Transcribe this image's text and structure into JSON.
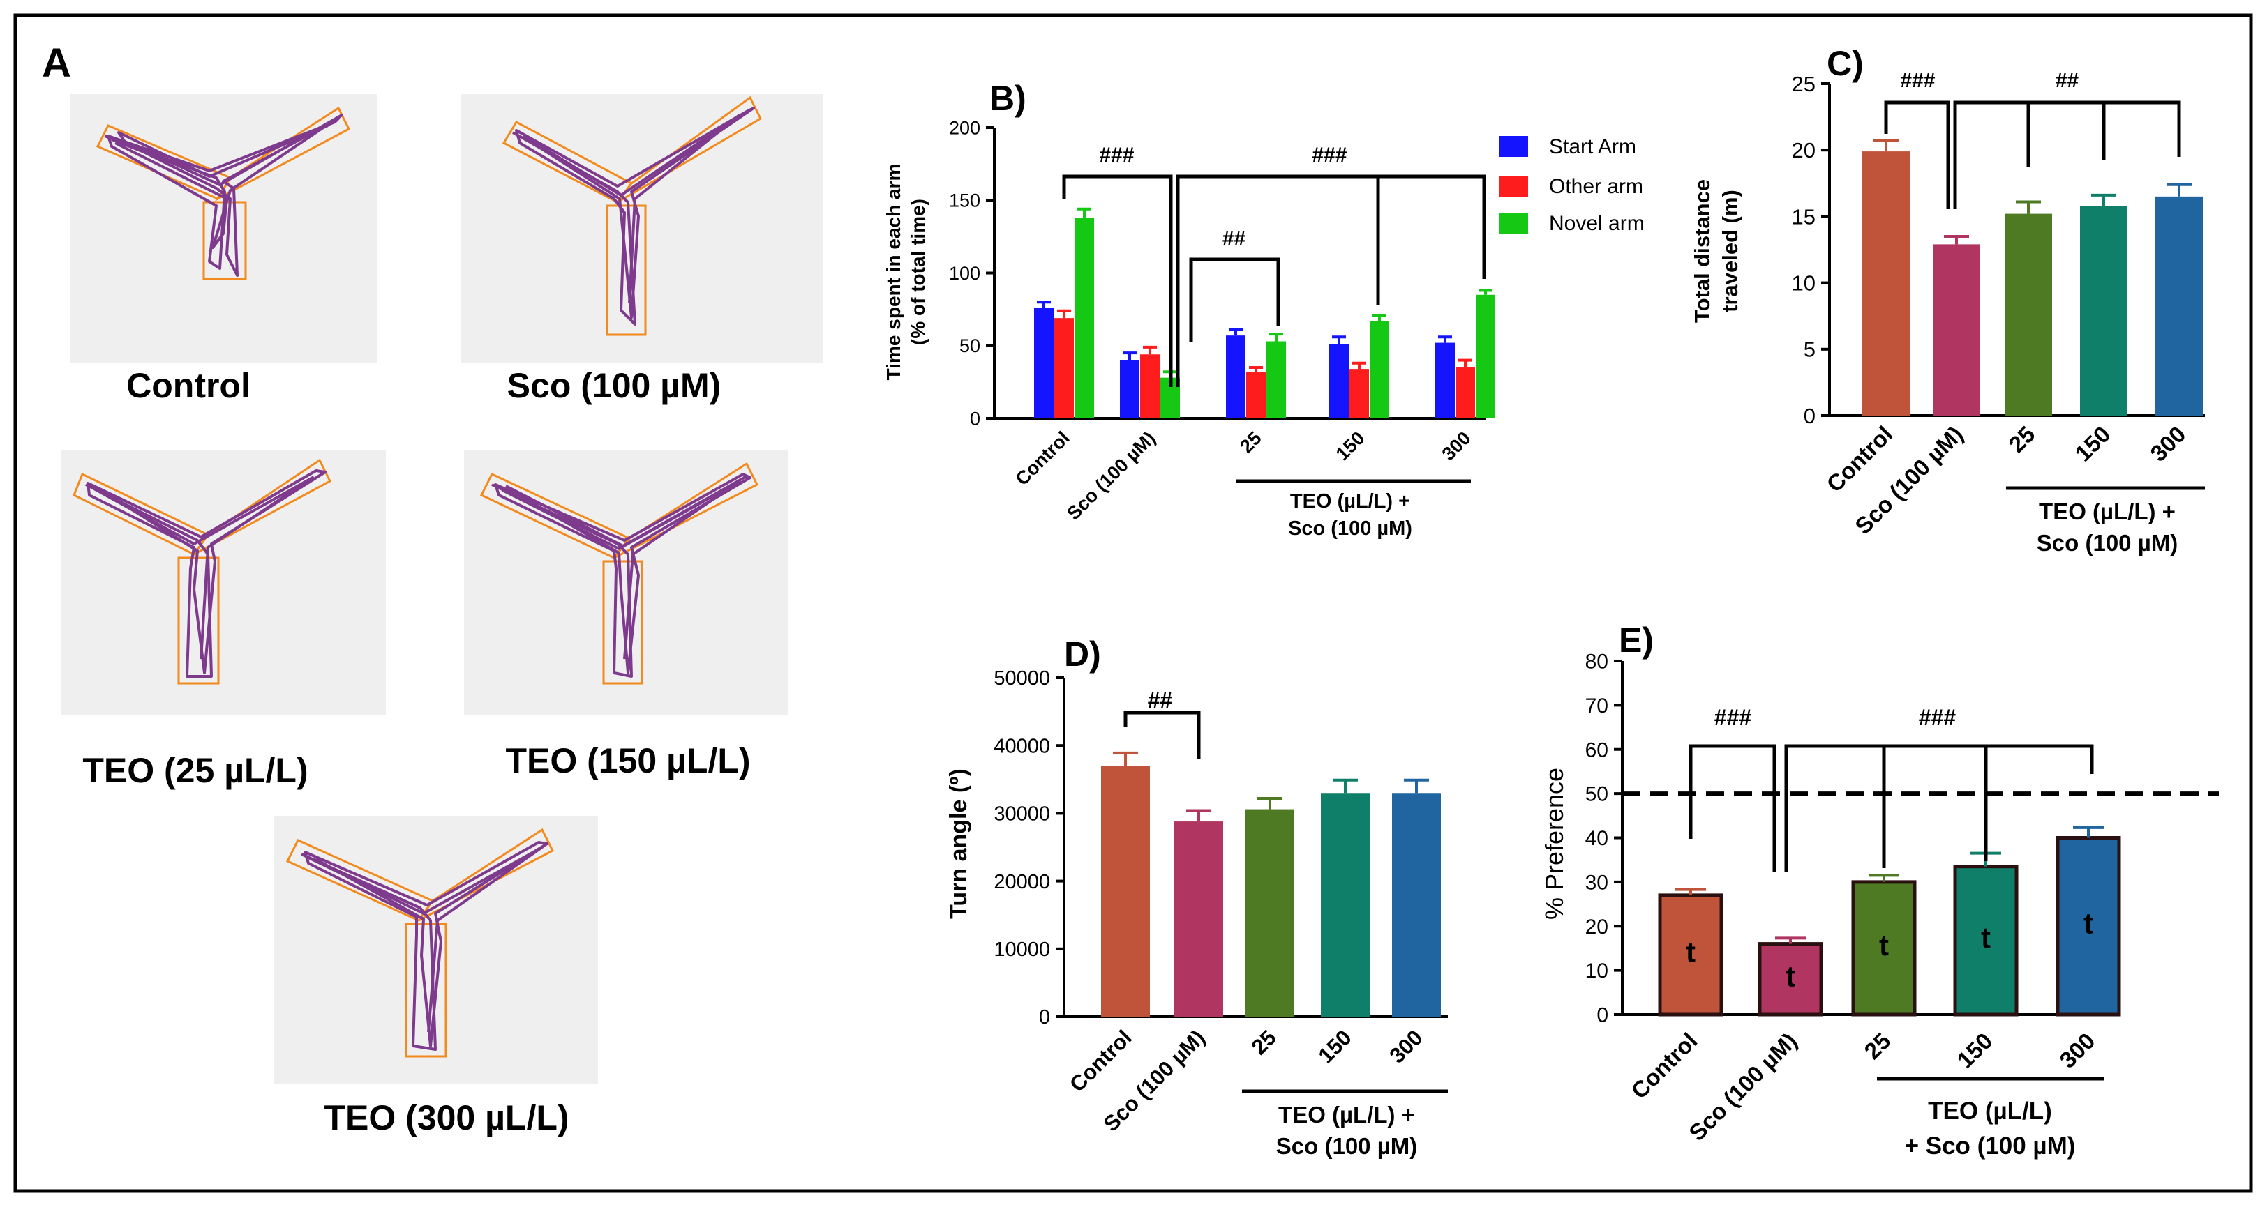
{
  "colors": {
    "frame": "#000000",
    "panel_bg": "#efefef",
    "track": "#7e3a8c",
    "box": "#f28a1e",
    "start_arm": "#1414ff",
    "other_arm": "#ff1c1c",
    "novel_arm": "#14c814",
    "control": "#c0543a",
    "sco": "#b03560",
    "teo25": "#4e7a23",
    "teo150": "#0f7f6a",
    "teo300": "#2064a0"
  },
  "panel_a": {
    "label": "A",
    "tracks": [
      {
        "label": "Control"
      },
      {
        "label": "Sco (100 µM)"
      },
      {
        "label": "TEO (25 µL/L)"
      },
      {
        "label": "TEO (150 µL/L)"
      },
      {
        "label": "TEO (300 µL/L)"
      }
    ]
  },
  "chart_data": [
    {
      "id": "B",
      "panel_label": "B)",
      "type": "bar",
      "ylabel_1": "Time spent in each arm",
      "ylabel_2": "(% of total time)",
      "ylim": [
        0,
        200
      ],
      "yticks": [
        0,
        50,
        100,
        150,
        200
      ],
      "categories": [
        "Control",
        "Sco (100 µM)",
        "25",
        "150",
        "300"
      ],
      "group_label_1": "TEO (µL/L) +",
      "group_label_2": "Sco (100 µM)",
      "series": [
        {
          "name": "Start Arm",
          "color": "#1414ff",
          "values": [
            76,
            40,
            57,
            51,
            52
          ],
          "errors": [
            4,
            5,
            4,
            5,
            4
          ]
        },
        {
          "name": "Other arm",
          "color": "#ff1c1c",
          "values": [
            69,
            44,
            32,
            34,
            35
          ],
          "errors": [
            5,
            5,
            3,
            4,
            5
          ]
        },
        {
          "name": "Novel arm",
          "color": "#14c814",
          "values": [
            138,
            28,
            53,
            67,
            85
          ],
          "errors": [
            6,
            4,
            5,
            4,
            3
          ]
        }
      ],
      "annotations": [
        "###",
        "###",
        "##"
      ]
    },
    {
      "id": "C",
      "panel_label": "C)",
      "type": "bar",
      "ylabel_1": "Total distance",
      "ylabel_2": "traveled (m)",
      "ylim": [
        0,
        25
      ],
      "yticks": [
        0,
        5,
        10,
        15,
        20,
        25
      ],
      "categories": [
        "Control",
        "Sco (100 µM)",
        "25",
        "150",
        "300"
      ],
      "group_label_1": "TEO (µL/L) +",
      "group_label_2": "Sco (100 µM)",
      "values": [
        19.9,
        12.9,
        15.2,
        15.8,
        16.5
      ],
      "errors": [
        0.8,
        0.6,
        0.9,
        0.8,
        0.9
      ],
      "annotations": [
        "###",
        "##"
      ]
    },
    {
      "id": "D",
      "panel_label": "D)",
      "type": "bar",
      "ylabel": "Turn angle (º)",
      "ylim": [
        0,
        50000
      ],
      "yticks": [
        0,
        10000,
        20000,
        30000,
        40000,
        50000
      ],
      "categories": [
        "Control",
        "Sco (100 µM)",
        "25",
        "150",
        "300"
      ],
      "group_label_1": "TEO (µL/L) +",
      "group_label_2": "Sco (100 µM)",
      "values": [
        37000,
        28800,
        30600,
        33000,
        33000
      ],
      "errors": [
        1900,
        1600,
        1600,
        1900,
        1900
      ],
      "annotations": [
        "##"
      ]
    },
    {
      "id": "E",
      "panel_label": "E)",
      "type": "bar",
      "ylabel": "% Preference",
      "ylim": [
        0,
        80
      ],
      "yticks": [
        0,
        10,
        20,
        30,
        40,
        50,
        60,
        70,
        80
      ],
      "reference_line": 50,
      "categories": [
        "Control",
        "Sco (100 µM)",
        "25",
        "150",
        "300"
      ],
      "group_label_1": "TEO (µL/L)",
      "group_label_2": "+ Sco (100 µM)",
      "values": [
        27,
        16,
        30,
        33.5,
        40
      ],
      "errors": [
        1.3,
        1.3,
        1.5,
        3,
        2.3
      ],
      "bar_marks": [
        "t",
        "t",
        "t",
        "t",
        "t"
      ],
      "annotations": [
        "###",
        "###"
      ]
    }
  ]
}
